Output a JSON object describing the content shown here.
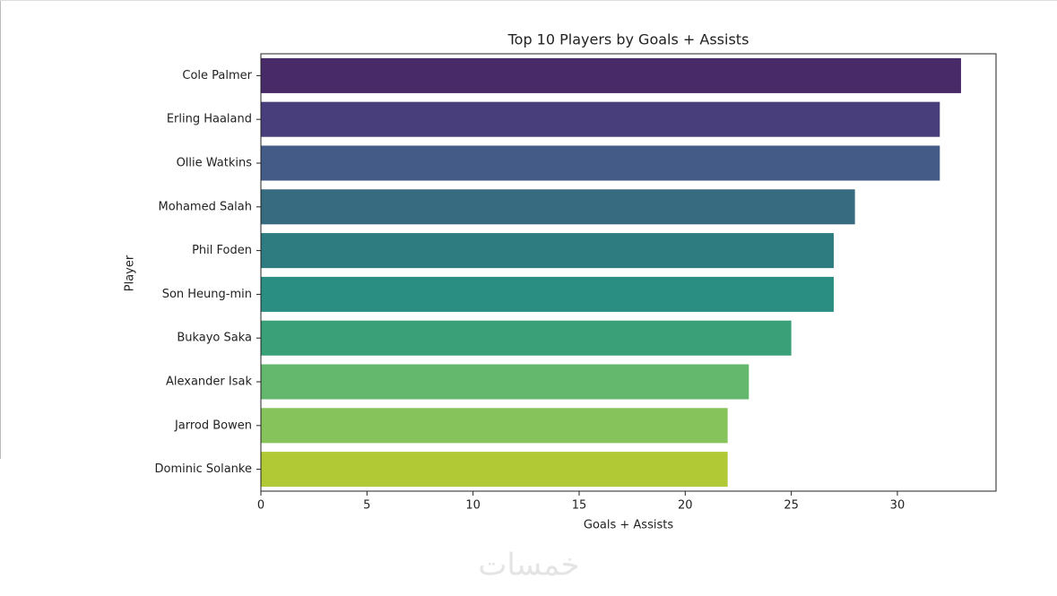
{
  "chart_data": {
    "type": "barh",
    "title": "Top 10 Players by Goals + Assists",
    "xlabel": "Goals + Assists",
    "ylabel": "Player",
    "categories": [
      "Cole Palmer",
      "Erling Haaland",
      "Ollie Watkins",
      "Mohamed Salah",
      "Phil Foden",
      "Son Heung-min",
      "Bukayo Saka",
      "Alexander Isak",
      "Jarrod Bowen",
      "Dominic Solanke"
    ],
    "values": [
      33,
      32,
      32,
      28,
      27,
      27,
      25,
      23,
      22,
      22
    ],
    "colors": [
      "#482a69",
      "#483e7c",
      "#435b86",
      "#376b80",
      "#2e7b80",
      "#2a8e82",
      "#3aa078",
      "#63b86e",
      "#86c35b",
      "#b1c935"
    ],
    "xlim": [
      0,
      34.65
    ],
    "xticks": [
      0,
      5,
      10,
      15,
      20,
      25,
      30
    ],
    "grid": false,
    "watermark": "خمسات"
  }
}
